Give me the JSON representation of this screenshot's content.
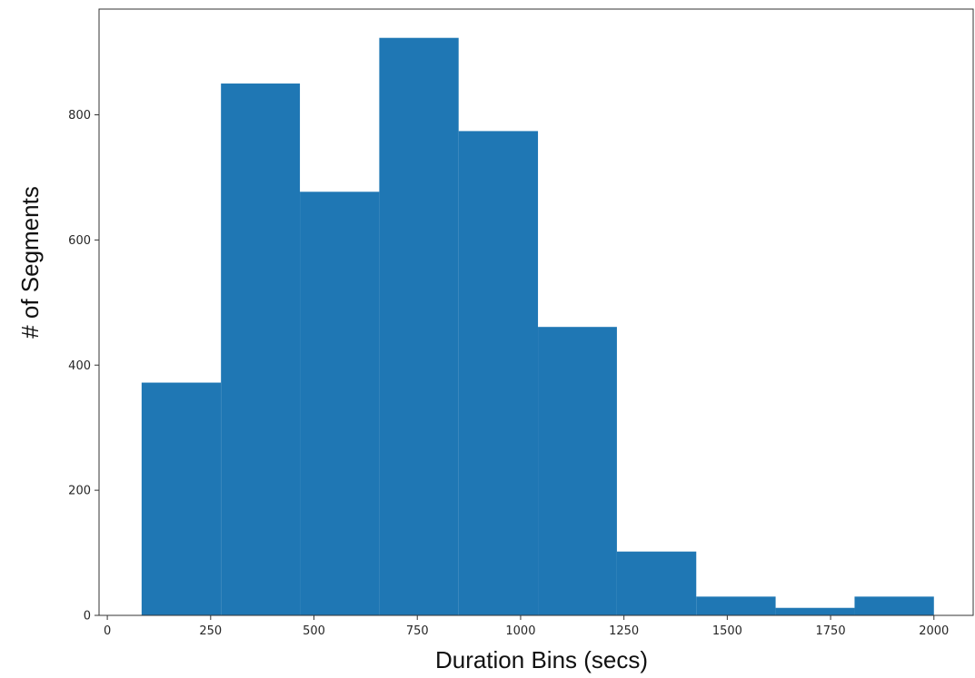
{
  "chart_data": {
    "type": "bar",
    "subtype": "histogram",
    "title": "",
    "xlabel": "Duration Bins (secs)",
    "ylabel": "# of Segments",
    "bin_edges": [
      83,
      275,
      466,
      658,
      850,
      1042,
      1233,
      1425,
      1617,
      1808,
      2000
    ],
    "values": [
      372,
      850,
      677,
      923,
      774,
      461,
      102,
      30,
      12,
      30
    ],
    "xlim": [
      -20,
      2095
    ],
    "ylim": [
      0,
      969
    ],
    "xticks": [
      0,
      250,
      500,
      750,
      1000,
      1250,
      1500,
      1750,
      2000
    ],
    "xtick_labels": [
      "0",
      "250",
      "500",
      "750",
      "1000",
      "1250",
      "1500",
      "1750",
      "2000"
    ],
    "yticks": [
      0,
      200,
      400,
      600,
      800
    ],
    "ytick_labels": [
      "0",
      "200",
      "400",
      "600",
      "800"
    ],
    "grid": false,
    "legend": "none",
    "colors": {
      "bar": "#1f77b4",
      "axes": "#333333"
    }
  }
}
